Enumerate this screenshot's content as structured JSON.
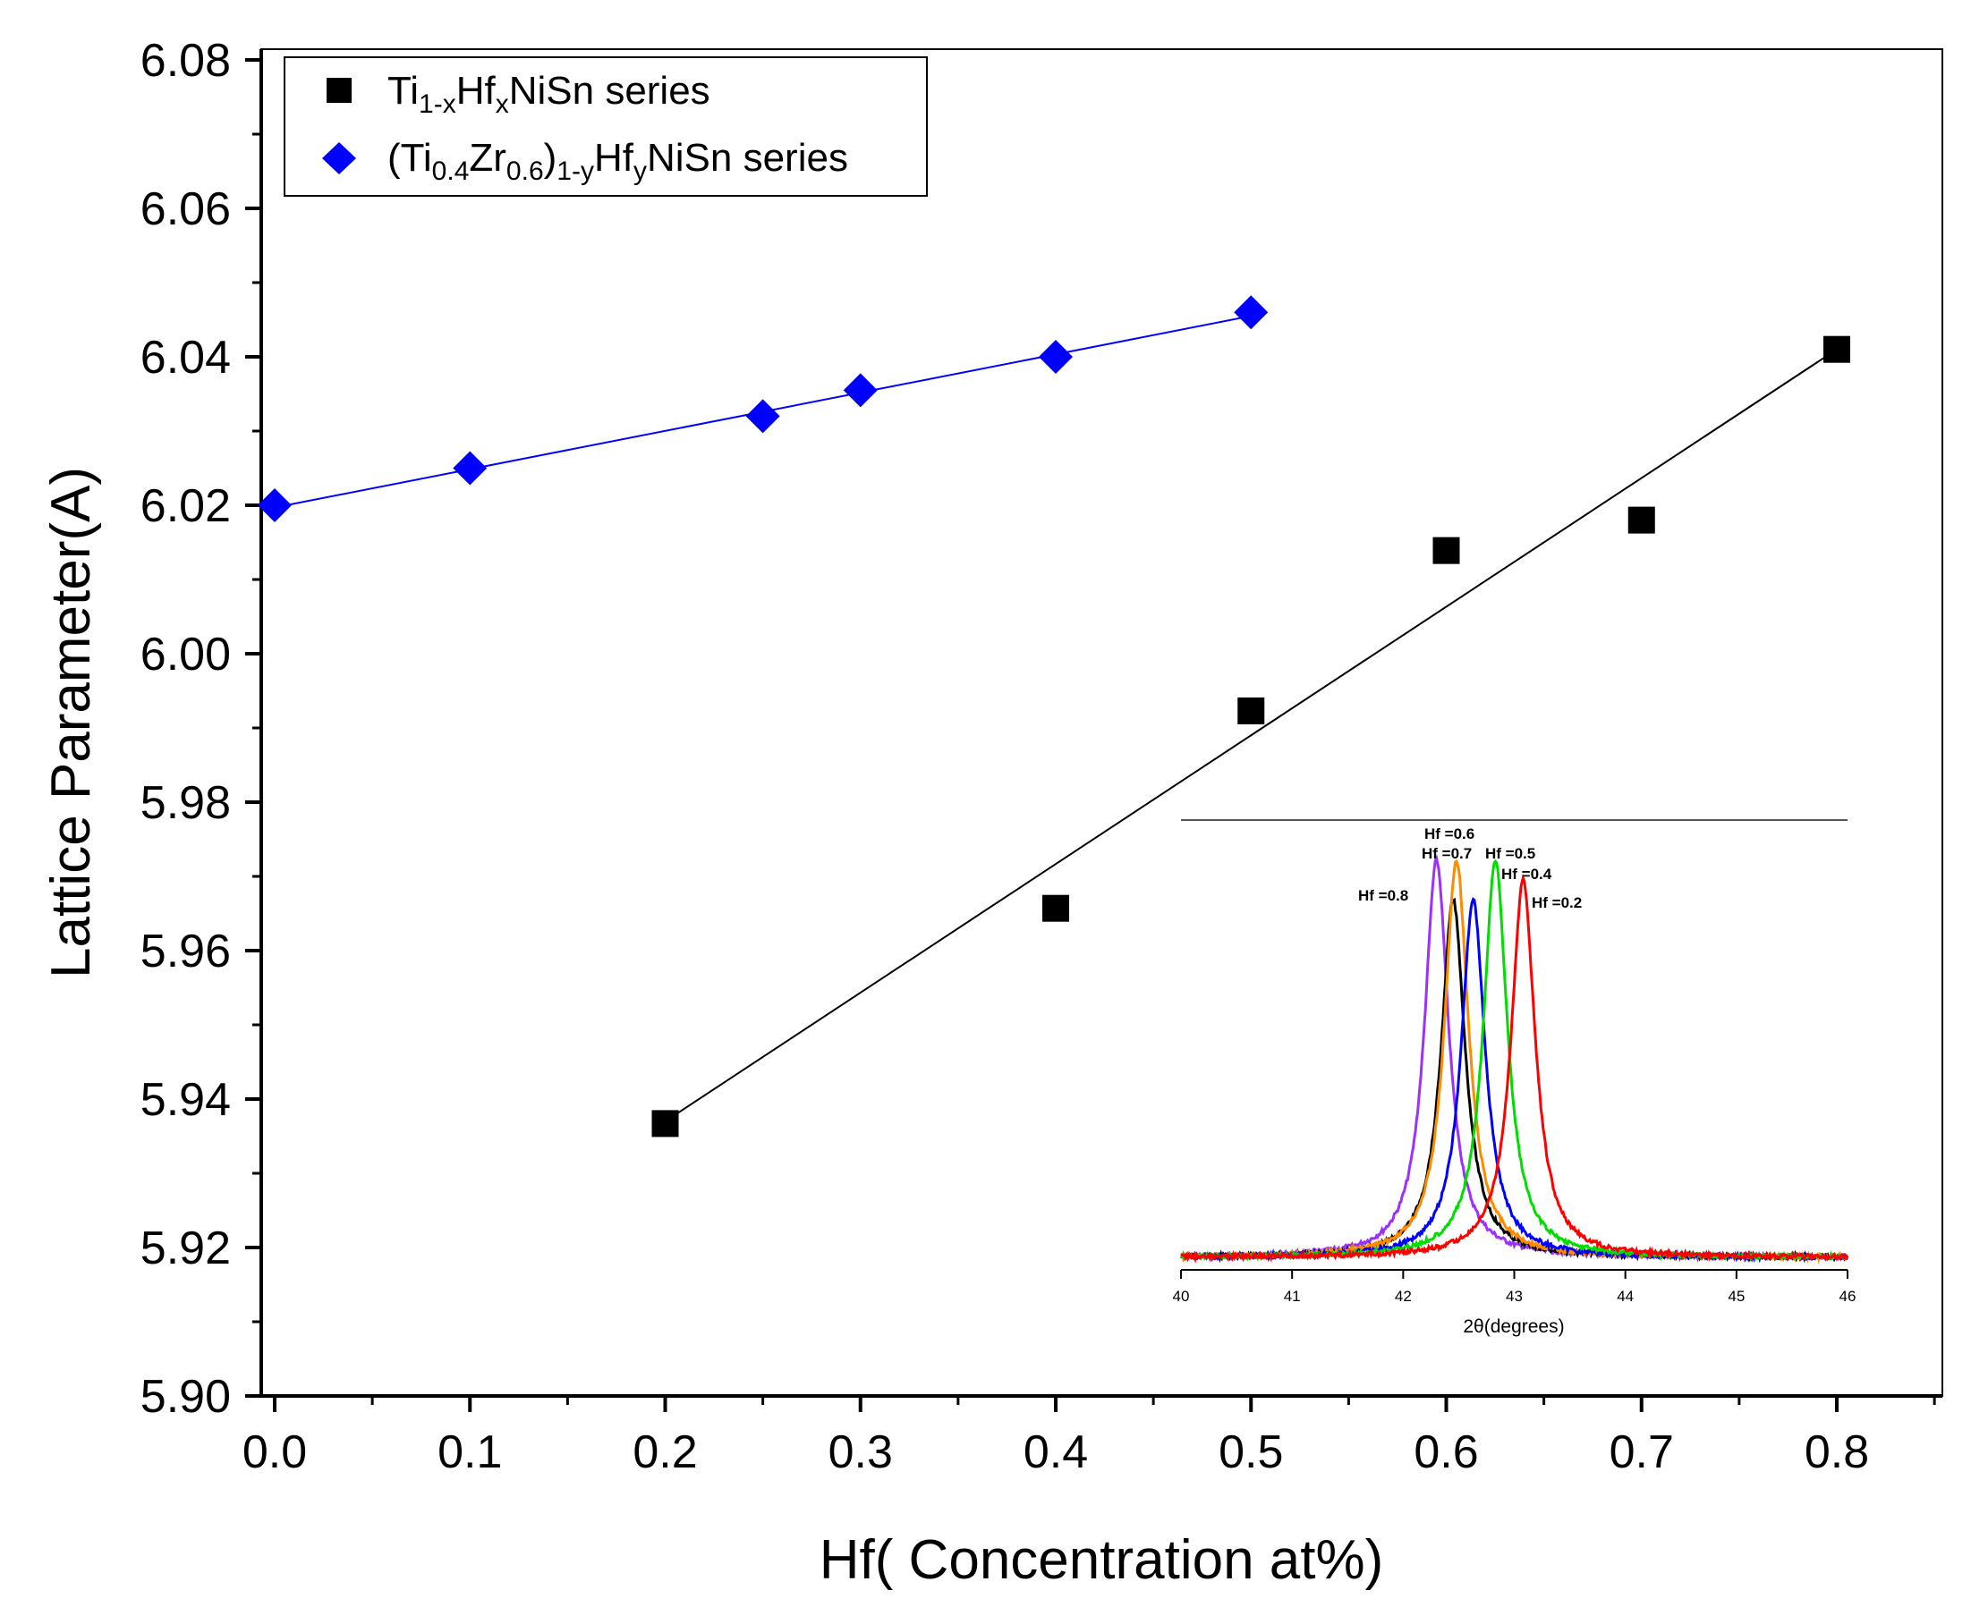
{
  "chart_data": {
    "type": "scatter",
    "title": "",
    "xlabel": "Hf( Concentration at%)",
    "ylabel": "Lattice Parameter(A)",
    "xlim": [
      0.0,
      0.85
    ],
    "ylim": [
      5.9,
      6.08
    ],
    "xticks": [
      "0.0",
      "0.1",
      "0.2",
      "0.3",
      "0.4",
      "0.5",
      "0.6",
      "0.7",
      "0.8"
    ],
    "yticks": [
      "5.90",
      "5.92",
      "5.94",
      "5.96",
      "5.98",
      "6.00",
      "6.02",
      "6.04",
      "6.06",
      "6.08"
    ],
    "legend_position": "top-left",
    "series": [
      {
        "name": "Ti1-xHfxNiSn series",
        "legend_parts": [
          {
            "t": "Ti",
            "s": ""
          },
          {
            "t": "1-x",
            "s": "sub"
          },
          {
            "t": "Hf",
            "s": ""
          },
          {
            "t": "x",
            "s": "sub"
          },
          {
            "t": "NiSn series",
            "s": ""
          }
        ],
        "marker": "square",
        "color": "#000000",
        "x": [
          0.2,
          0.4,
          0.5,
          0.6,
          0.7,
          0.8
        ],
        "y": [
          5.9367,
          5.9657,
          5.9923,
          6.0139,
          6.018,
          6.041
        ],
        "fit": {
          "x": [
            0.2,
            0.8
          ],
          "y": [
            5.937,
            6.041
          ]
        }
      },
      {
        "name": "(Ti0.4Zr0.6)1-yHfyNiSn series",
        "legend_parts": [
          {
            "t": "(Ti",
            "s": ""
          },
          {
            "t": "0.4",
            "s": "sub"
          },
          {
            "t": "Zr",
            "s": ""
          },
          {
            "t": "0.6",
            "s": "sub"
          },
          {
            "t": ")",
            "s": ""
          },
          {
            "t": "1-y",
            "s": "sub"
          },
          {
            "t": "Hf",
            "s": ""
          },
          {
            "t": "y",
            "s": "sub"
          },
          {
            "t": "NiSn series",
            "s": ""
          }
        ],
        "marker": "diamond",
        "color": "#0000ff",
        "x": [
          0.0,
          0.1,
          0.25,
          0.3,
          0.4,
          0.5
        ],
        "y": [
          6.02,
          6.025,
          6.032,
          6.0355,
          6.04,
          6.046
        ],
        "fit": {
          "x": [
            0.0,
            0.5
          ],
          "y": [
            6.0197,
            6.0455
          ]
        }
      }
    ],
    "inset": {
      "type": "line",
      "xlabel": "2θ(degrees)",
      "xlim": [
        40,
        46
      ],
      "xticks": [
        "40",
        "41",
        "42",
        "43",
        "44",
        "45",
        "46"
      ],
      "curves": [
        {
          "label": "Hf =0.2",
          "color": "#ff0000",
          "peak": 43.08,
          "height": 0.95
        },
        {
          "label": "Hf =0.4",
          "color": "#00dd00",
          "peak": 42.83,
          "height": 1.0
        },
        {
          "label": "Hf =0.5",
          "color": "#0000ff",
          "peak": 42.63,
          "height": 0.9
        },
        {
          "label": "Hf =0.6",
          "color": "#ff8c00",
          "peak": 42.48,
          "height": 1.0
        },
        {
          "label": "Hf =0.7",
          "color": "#000000",
          "peak": 42.45,
          "height": 0.9
        },
        {
          "label": "Hf =0.8",
          "color": "#9b30ff",
          "peak": 42.3,
          "height": 1.0
        }
      ]
    }
  }
}
